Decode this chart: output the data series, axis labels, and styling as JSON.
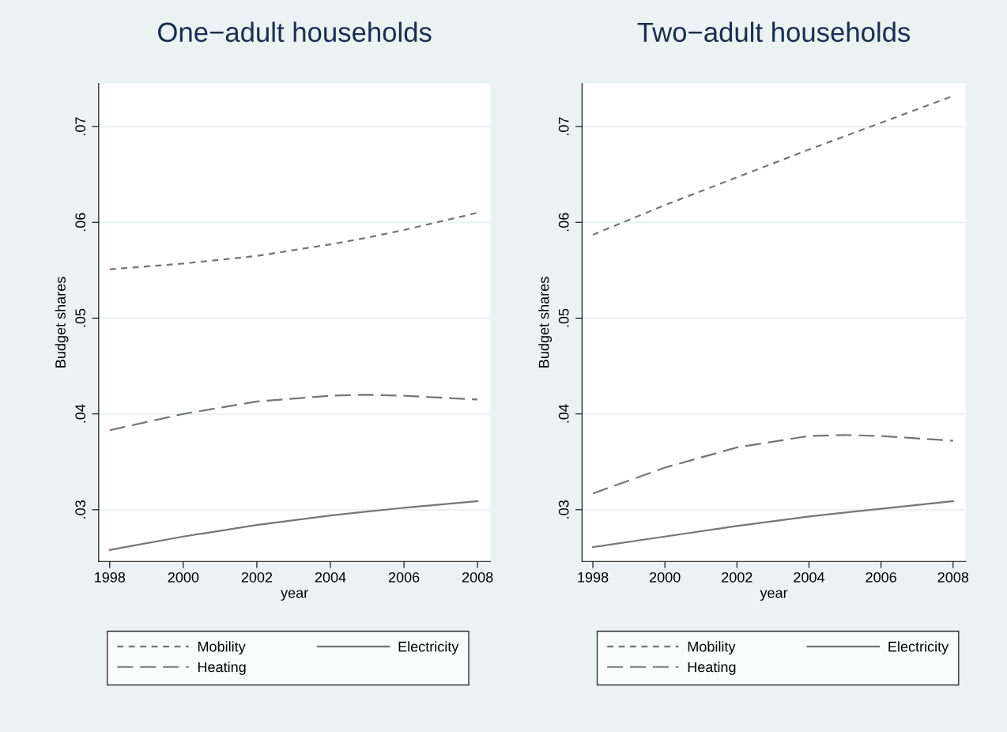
{
  "chart_data": [
    {
      "type": "line",
      "title": "One−adult households",
      "xlabel": "year",
      "ylabel": "Budget shares",
      "x": [
        1998,
        2000,
        2002,
        2004,
        2005,
        2006,
        2008
      ],
      "series": [
        {
          "name": "Mobility",
          "color": "#767676",
          "line_style": "dotted",
          "values": [
            0.0551,
            0.0557,
            0.0565,
            0.0577,
            0.0584,
            0.0592,
            0.061
          ]
        },
        {
          "name": "Heating",
          "color": "#767676",
          "line_style": "dashed",
          "values": [
            0.0383,
            0.04,
            0.0413,
            0.0419,
            0.042,
            0.0419,
            0.0415
          ]
        },
        {
          "name": "Electricity",
          "color": "#767676",
          "line_style": "solid",
          "values": [
            0.0258,
            0.0272,
            0.0284,
            0.0294,
            0.0298,
            0.0302,
            0.0309
          ]
        }
      ],
      "xlim": [
        1997.7,
        2008.35
      ],
      "ylim": [
        0.0246,
        0.0745
      ],
      "xticks": [
        1998,
        2000,
        2002,
        2004,
        2006,
        2008
      ],
      "yticks": [
        {
          "value": 0.03,
          "label": ".03"
        },
        {
          "value": 0.04,
          "label": ".04"
        },
        {
          "value": 0.05,
          "label": ".05"
        },
        {
          "value": 0.06,
          "label": ".06"
        },
        {
          "value": 0.07,
          "label": ".07"
        }
      ],
      "grid": "y",
      "legend": "bottom"
    },
    {
      "type": "line",
      "title": "Two−adult households",
      "xlabel": "year",
      "ylabel": "Budget shares",
      "x": [
        1998,
        2000,
        2002,
        2004,
        2005,
        2006,
        2008
      ],
      "series": [
        {
          "name": "Mobility",
          "color": "#767676",
          "line_style": "dotted",
          "values": [
            0.0587,
            0.0618,
            0.0647,
            0.0676,
            0.069,
            0.0704,
            0.0732
          ]
        },
        {
          "name": "Heating",
          "color": "#767676",
          "line_style": "dashed",
          "values": [
            0.0317,
            0.0344,
            0.0365,
            0.0377,
            0.0378,
            0.0377,
            0.0372
          ]
        },
        {
          "name": "Electricity",
          "color": "#767676",
          "line_style": "solid",
          "values": [
            0.0261,
            0.0272,
            0.0283,
            0.0293,
            0.0297,
            0.0301,
            0.0309
          ]
        }
      ],
      "xlim": [
        1997.7,
        2008.35
      ],
      "ylim": [
        0.0246,
        0.0745
      ],
      "xticks": [
        1998,
        2000,
        2002,
        2004,
        2006,
        2008
      ],
      "yticks": [
        {
          "value": 0.03,
          "label": ".03"
        },
        {
          "value": 0.04,
          "label": ".04"
        },
        {
          "value": 0.05,
          "label": ".05"
        },
        {
          "value": 0.06,
          "label": ".06"
        },
        {
          "value": 0.07,
          "label": ".07"
        }
      ],
      "grid": "y",
      "legend": "bottom"
    }
  ]
}
